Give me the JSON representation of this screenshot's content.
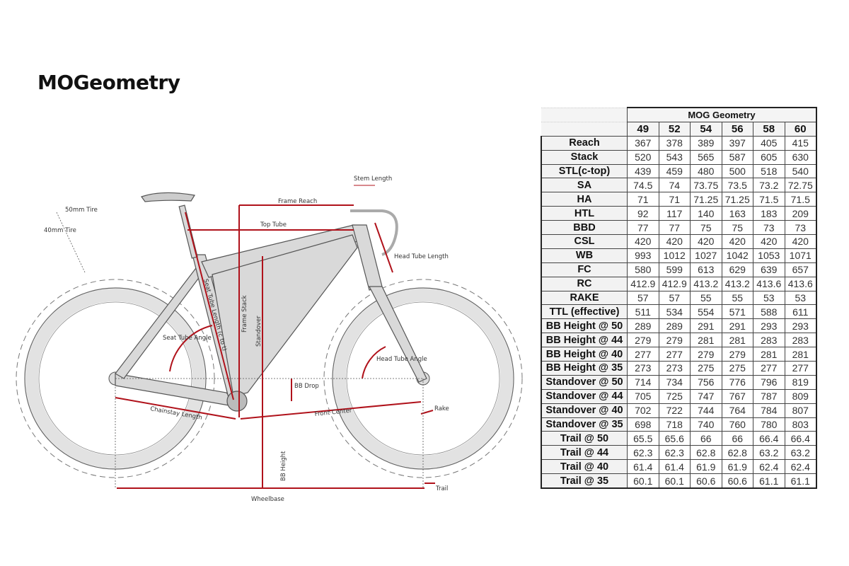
{
  "page_title": "MOGeometry",
  "diagram": {
    "labels": {
      "tire_50": "50mm Tire",
      "tire_40": "40mm Tire",
      "frame_reach": "Frame Reach",
      "top_tube": "Top Tube",
      "stem_length": "Stem Length",
      "head_tube_length": "Head Tube Length",
      "seat_tube_length": "Seat Tube Length (c to t)",
      "frame_stack": "Frame Stack",
      "standover": "Standover",
      "seat_tube_angle": "Seat Tube Angle",
      "head_tube_angle": "Head Tube Angle",
      "bb_drop": "BB Drop",
      "chainstay_length": "Chainstay Length",
      "front_center": "Front Center",
      "rake": "Rake",
      "bb_height": "BB Height",
      "trail": "Trail",
      "wheelbase": "Wheelbase"
    },
    "colors": {
      "measure": "#b0121b",
      "frame": "#d9d9d9",
      "outline": "#555555"
    }
  },
  "table": {
    "caption": "MOG Geometry",
    "sizes": [
      "49",
      "52",
      "54",
      "56",
      "58",
      "60"
    ],
    "rows": [
      {
        "label": "Reach",
        "values": [
          "367",
          "378",
          "389",
          "397",
          "405",
          "415"
        ]
      },
      {
        "label": "Stack",
        "values": [
          "520",
          "543",
          "565",
          "587",
          "605",
          "630"
        ]
      },
      {
        "label": "STL(c-top)",
        "values": [
          "439",
          "459",
          "480",
          "500",
          "518",
          "540"
        ]
      },
      {
        "label": "SA",
        "values": [
          "74.5",
          "74",
          "73.75",
          "73.5",
          "73.2",
          "72.75"
        ]
      },
      {
        "label": "HA",
        "values": [
          "71",
          "71",
          "71.25",
          "71.25",
          "71.5",
          "71.5"
        ]
      },
      {
        "label": "HTL",
        "values": [
          "92",
          "117",
          "140",
          "163",
          "183",
          "209"
        ]
      },
      {
        "label": "BBD",
        "values": [
          "77",
          "77",
          "75",
          "75",
          "73",
          "73"
        ]
      },
      {
        "label": "CSL",
        "values": [
          "420",
          "420",
          "420",
          "420",
          "420",
          "420"
        ]
      },
      {
        "label": "WB",
        "values": [
          "993",
          "1012",
          "1027",
          "1042",
          "1053",
          "1071"
        ]
      },
      {
        "label": "FC",
        "values": [
          "580",
          "599",
          "613",
          "629",
          "639",
          "657"
        ]
      },
      {
        "label": "RC",
        "values": [
          "412.9",
          "412.9",
          "413.2",
          "413.2",
          "413.6",
          "413.6"
        ]
      },
      {
        "label": "RAKE",
        "values": [
          "57",
          "57",
          "55",
          "55",
          "53",
          "53"
        ]
      },
      {
        "label": "TTL (effective)",
        "values": [
          "511",
          "534",
          "554",
          "571",
          "588",
          "611"
        ]
      },
      {
        "label": "BB Height @ 50",
        "values": [
          "289",
          "289",
          "291",
          "291",
          "293",
          "293"
        ]
      },
      {
        "label": "BB Height @ 44",
        "values": [
          "279",
          "279",
          "281",
          "281",
          "283",
          "283"
        ]
      },
      {
        "label": "BB Height @ 40",
        "values": [
          "277",
          "277",
          "279",
          "279",
          "281",
          "281"
        ]
      },
      {
        "label": "BB Height @ 35",
        "values": [
          "273",
          "273",
          "275",
          "275",
          "277",
          "277"
        ]
      },
      {
        "label": "Standover @ 50",
        "values": [
          "714",
          "734",
          "756",
          "776",
          "796",
          "819"
        ]
      },
      {
        "label": "Standover @ 44",
        "values": [
          "705",
          "725",
          "747",
          "767",
          "787",
          "809"
        ]
      },
      {
        "label": "Standover @ 40",
        "values": [
          "702",
          "722",
          "744",
          "764",
          "784",
          "807"
        ]
      },
      {
        "label": "Standover @ 35",
        "values": [
          "698",
          "718",
          "740",
          "760",
          "780",
          "803"
        ]
      },
      {
        "label": "Trail @ 50",
        "values": [
          "65.5",
          "65.6",
          "66",
          "66",
          "66.4",
          "66.4"
        ]
      },
      {
        "label": "Trail @ 44",
        "values": [
          "62.3",
          "62.3",
          "62.8",
          "62.8",
          "63.2",
          "63.2"
        ]
      },
      {
        "label": "Trail @ 40",
        "values": [
          "61.4",
          "61.4",
          "61.9",
          "61.9",
          "62.4",
          "62.4"
        ]
      },
      {
        "label": "Trail @ 35",
        "values": [
          "60.1",
          "60.1",
          "60.6",
          "60.6",
          "61.1",
          "61.1"
        ]
      }
    ]
  }
}
